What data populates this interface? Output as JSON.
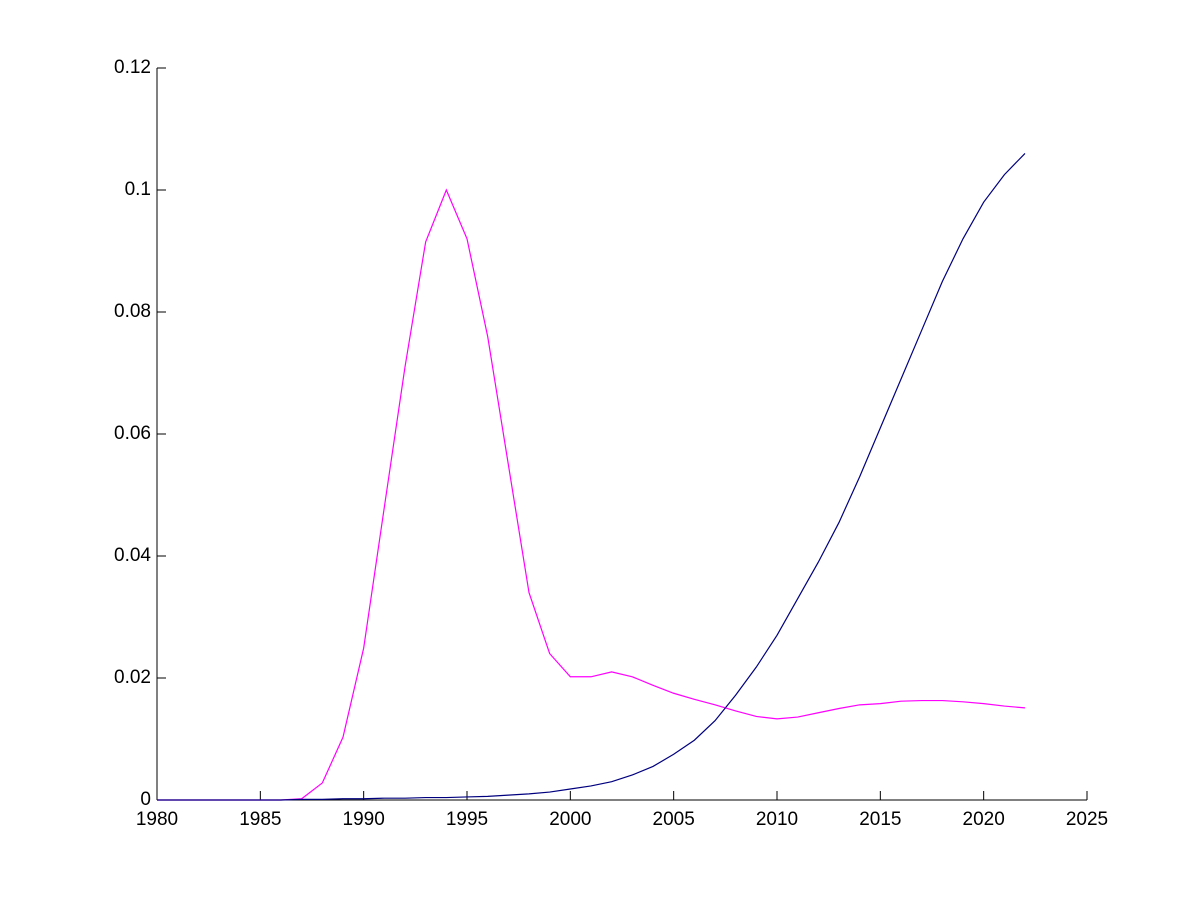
{
  "chart_data": {
    "type": "line",
    "x": [
      1980,
      1981,
      1982,
      1983,
      1984,
      1985,
      1986,
      1987,
      1988,
      1989,
      1990,
      1991,
      1992,
      1993,
      1994,
      1995,
      1996,
      1997,
      1998,
      1999,
      2000,
      2001,
      2002,
      2003,
      2004,
      2005,
      2006,
      2007,
      2008,
      2009,
      2010,
      2011,
      2012,
      2013,
      2014,
      2015,
      2016,
      2017,
      2018,
      2019,
      2020,
      2021,
      2022
    ],
    "series": [
      {
        "color": "#ff00ff",
        "values": [
          0,
          0,
          0,
          0,
          0,
          0,
          0,
          0.0002,
          0.0028,
          0.0103,
          0.0249,
          0.048,
          0.071,
          0.0915,
          0.1,
          0.092,
          0.076,
          0.055,
          0.034,
          0.024,
          0.0202,
          0.0202,
          0.021,
          0.0202,
          0.0188,
          0.0175,
          0.0165,
          0.0156,
          0.0146,
          0.0137,
          0.0133,
          0.0136,
          0.0143,
          0.015,
          0.0156,
          0.0158,
          0.0162,
          0.0163,
          0.0163,
          0.0161,
          0.0158,
          0.0154,
          0.0151
        ]
      },
      {
        "color": "#00007f",
        "values": [
          0,
          0,
          0,
          0,
          0,
          0,
          0,
          0.0001,
          0.0001,
          0.0002,
          0.0002,
          0.0003,
          0.0003,
          0.0004,
          0.0004,
          0.0005,
          0.0006,
          0.0008,
          0.001,
          0.0013,
          0.0018,
          0.0023,
          0.003,
          0.0041,
          0.0055,
          0.0075,
          0.0098,
          0.013,
          0.0172,
          0.0218,
          0.027,
          0.033,
          0.039,
          0.0455,
          0.053,
          0.061,
          0.069,
          0.077,
          0.085,
          0.092,
          0.098,
          0.1025,
          0.106
        ]
      }
    ],
    "xlim": [
      1980,
      2025
    ],
    "xticks": [
      1980,
      1985,
      1990,
      1995,
      2000,
      2005,
      2010,
      2015,
      2020,
      2025
    ],
    "ylim": [
      0,
      0.12
    ],
    "yticks": [
      0,
      0.02,
      0.04,
      0.06,
      0.08,
      0.1,
      0.12
    ]
  }
}
